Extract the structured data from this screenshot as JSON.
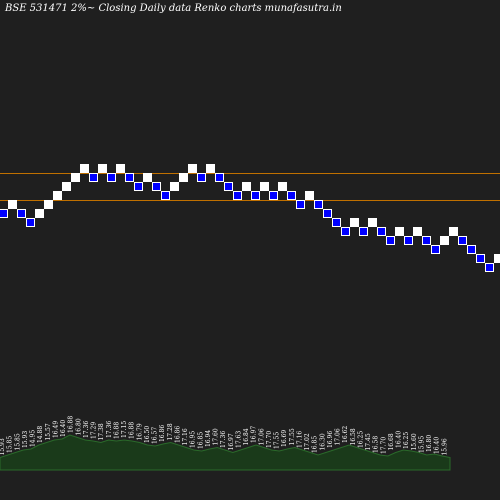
{
  "title": "BSE 531471 2%~  Closing Daily data  Renko  charts munafasutra.in",
  "colors": {
    "background": "#1f1f1f",
    "up_brick": "#ffffff",
    "down_brick": "#0000ff",
    "down_brick_border": "#ffffff",
    "level_line": "#c07000",
    "volume_fill": "#1a3a1a",
    "volume_line": "#2a6a2a"
  },
  "chart_data": {
    "type": "renko",
    "brick_size_note": "2%",
    "y_range": [
      0,
      500
    ],
    "bricks": [
      {
        "dir": "down",
        "level": 13
      },
      {
        "dir": "up",
        "level": 14
      },
      {
        "dir": "down",
        "level": 13
      },
      {
        "dir": "down",
        "level": 12
      },
      {
        "dir": "up",
        "level": 13
      },
      {
        "dir": "up",
        "level": 14
      },
      {
        "dir": "up",
        "level": 15
      },
      {
        "dir": "up",
        "level": 16
      },
      {
        "dir": "up",
        "level": 17
      },
      {
        "dir": "up",
        "level": 18
      },
      {
        "dir": "down",
        "level": 17
      },
      {
        "dir": "up",
        "level": 18
      },
      {
        "dir": "down",
        "level": 17
      },
      {
        "dir": "up",
        "level": 18
      },
      {
        "dir": "down",
        "level": 17
      },
      {
        "dir": "down",
        "level": 16
      },
      {
        "dir": "up",
        "level": 17
      },
      {
        "dir": "down",
        "level": 16
      },
      {
        "dir": "down",
        "level": 15
      },
      {
        "dir": "up",
        "level": 16
      },
      {
        "dir": "up",
        "level": 17
      },
      {
        "dir": "up",
        "level": 18
      },
      {
        "dir": "down",
        "level": 17
      },
      {
        "dir": "up",
        "level": 18
      },
      {
        "dir": "down",
        "level": 17
      },
      {
        "dir": "down",
        "level": 16
      },
      {
        "dir": "down",
        "level": 15
      },
      {
        "dir": "up",
        "level": 16
      },
      {
        "dir": "down",
        "level": 15
      },
      {
        "dir": "up",
        "level": 16
      },
      {
        "dir": "down",
        "level": 15
      },
      {
        "dir": "up",
        "level": 16
      },
      {
        "dir": "down",
        "level": 15
      },
      {
        "dir": "down",
        "level": 14
      },
      {
        "dir": "up",
        "level": 15
      },
      {
        "dir": "down",
        "level": 14
      },
      {
        "dir": "down",
        "level": 13
      },
      {
        "dir": "down",
        "level": 12
      },
      {
        "dir": "down",
        "level": 11
      },
      {
        "dir": "up",
        "level": 12
      },
      {
        "dir": "down",
        "level": 11
      },
      {
        "dir": "up",
        "level": 12
      },
      {
        "dir": "down",
        "level": 11
      },
      {
        "dir": "down",
        "level": 10
      },
      {
        "dir": "up",
        "level": 11
      },
      {
        "dir": "down",
        "level": 10
      },
      {
        "dir": "up",
        "level": 11
      },
      {
        "dir": "down",
        "level": 10
      },
      {
        "dir": "down",
        "level": 9
      },
      {
        "dir": "up",
        "level": 10
      },
      {
        "dir": "up",
        "level": 11
      },
      {
        "dir": "down",
        "level": 10
      },
      {
        "dir": "down",
        "level": 9
      },
      {
        "dir": "down",
        "level": 8
      },
      {
        "dir": "down",
        "level": 7
      },
      {
        "dir": "up",
        "level": 8
      }
    ],
    "level_lines": [
      17,
      14
    ],
    "volume_labels": [
      "15.93",
      "15.85",
      "15.85",
      "15.93",
      "14.95",
      "14.88",
      "15.57",
      "16.49",
      "16.40",
      "16.88",
      "16.80",
      "17.36",
      "17.29",
      "17.38",
      "17.36",
      "16.88",
      "17.15",
      "16.88",
      "16.79",
      "16.50",
      "16.57",
      "16.86",
      "17.28",
      "16.86",
      "17.16",
      "16.95",
      "16.85",
      "16.94",
      "17.60",
      "17.36",
      "16.97",
      "17.63",
      "16.84",
      "16.97",
      "17.06",
      "17.70",
      "17.55",
      "16.69",
      "17.55",
      "17.16",
      "17.02",
      "16.85",
      "16.30",
      "16.96",
      "17.06",
      "16.62",
      "16.58",
      "16.25",
      "17.45",
      "16.58",
      "17.70",
      "16.68",
      "16.40",
      "16.25",
      "15.60",
      "15.95",
      "16.80",
      "16.40",
      "15.96"
    ],
    "volume_heights": [
      0.25,
      0.3,
      0.35,
      0.4,
      0.42,
      0.5,
      0.55,
      0.6,
      0.62,
      0.7,
      0.65,
      0.6,
      0.58,
      0.55,
      0.6,
      0.58,
      0.6,
      0.58,
      0.55,
      0.5,
      0.48,
      0.52,
      0.55,
      0.5,
      0.45,
      0.4,
      0.38,
      0.42,
      0.45,
      0.4,
      0.35,
      0.4,
      0.45,
      0.5,
      0.45,
      0.4,
      0.38,
      0.42,
      0.45,
      0.4,
      0.35,
      0.3,
      0.35,
      0.4,
      0.45,
      0.5,
      0.45,
      0.4,
      0.35,
      0.3,
      0.28,
      0.35,
      0.4,
      0.38,
      0.35,
      0.3,
      0.32,
      0.28,
      0.25
    ]
  }
}
